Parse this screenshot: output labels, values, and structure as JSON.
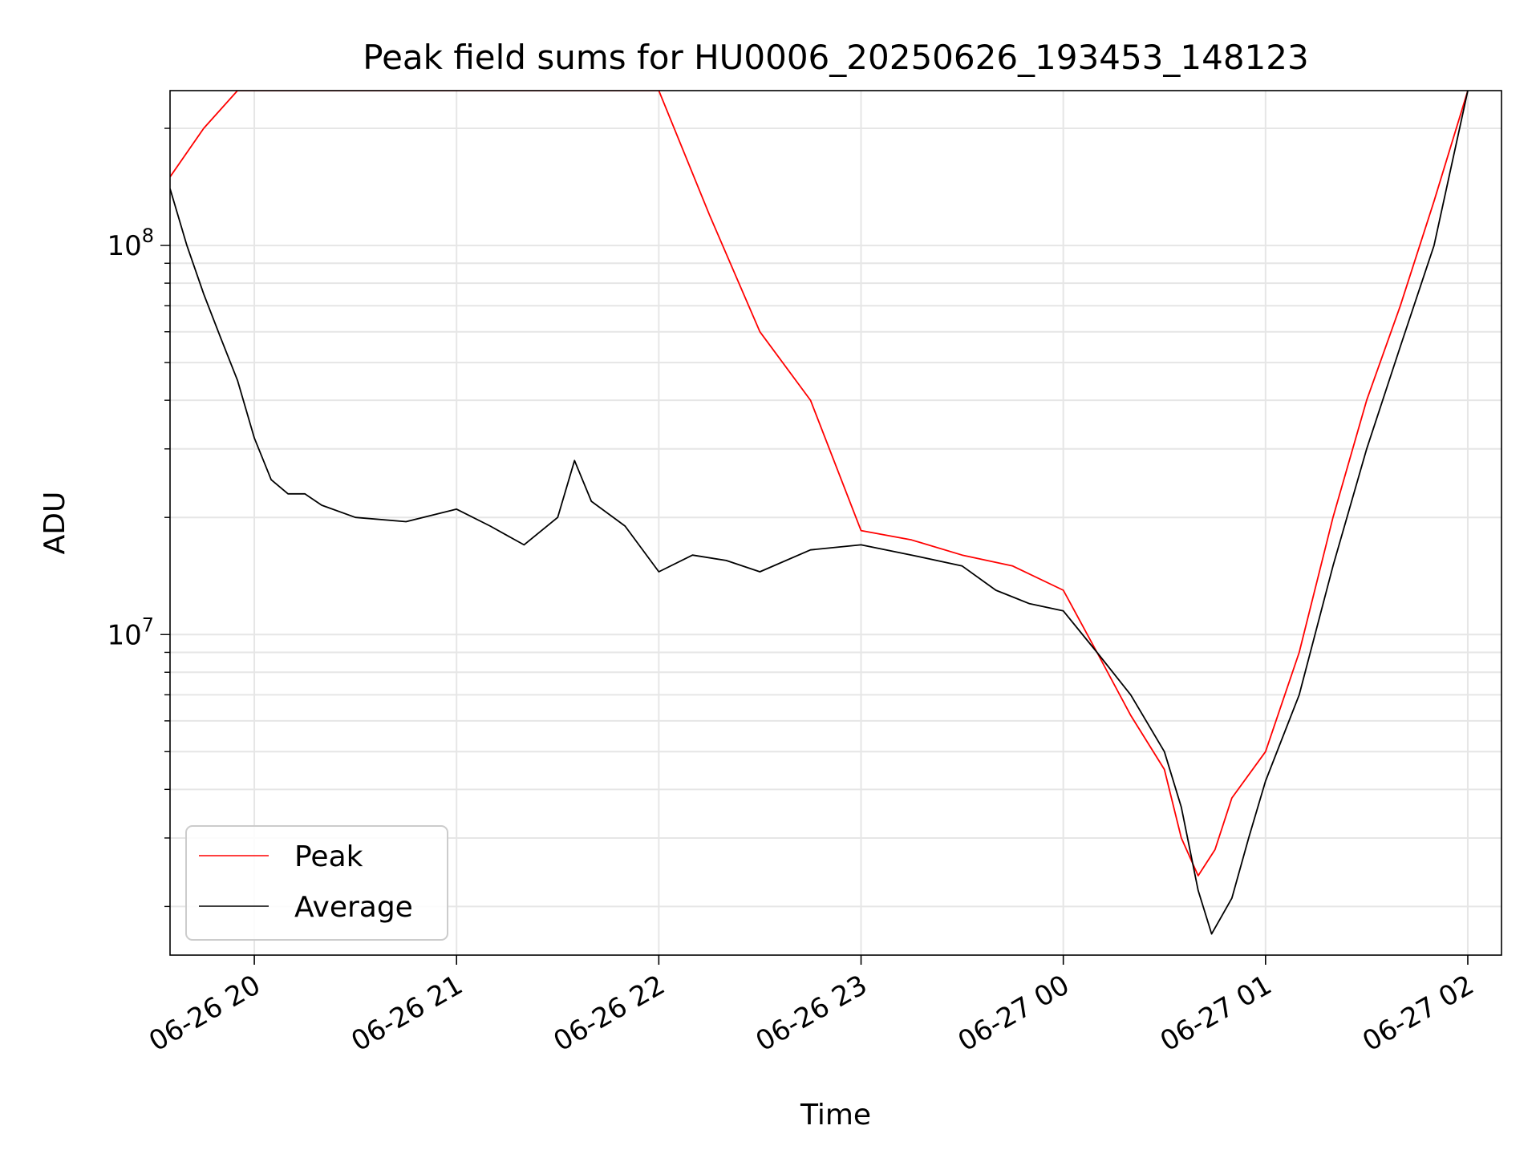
{
  "chart_data": {
    "type": "line",
    "title": "Peak field sums for HU0006_20250626_193453_148123",
    "xlabel": "Time",
    "ylabel": "ADU",
    "y_scale": "log",
    "xlim": [
      "2025-06-26 19:35",
      "2025-06-27 02:10"
    ],
    "ylim": [
      1500000,
      250000000
    ],
    "x_ticks": [
      {
        "t": "2025-06-26 20:00",
        "label": "06-26 20"
      },
      {
        "t": "2025-06-26 21:00",
        "label": "06-26 21"
      },
      {
        "t": "2025-06-26 22:00",
        "label": "06-26 22"
      },
      {
        "t": "2025-06-26 23:00",
        "label": "06-26 23"
      },
      {
        "t": "2025-06-27 00:00",
        "label": "06-27 00"
      },
      {
        "t": "2025-06-27 01:00",
        "label": "06-27 01"
      },
      {
        "t": "2025-06-27 02:00",
        "label": "06-27 02"
      }
    ],
    "y_ticks": [
      {
        "value": 10000000,
        "base": "10",
        "exp": "7"
      },
      {
        "value": 100000000,
        "base": "10",
        "exp": "8"
      }
    ],
    "grid": true,
    "legend_position": "lower-left",
    "series": [
      {
        "name": "Peak",
        "color": "#ff0000",
        "x": [
          "2025-06-26 19:35",
          "2025-06-26 19:45",
          "2025-06-26 19:55",
          "2025-06-26 20:05",
          "2025-06-26 20:15",
          "2025-06-26 20:30",
          "2025-06-26 20:45",
          "2025-06-26 21:00",
          "2025-06-26 21:15",
          "2025-06-26 21:30",
          "2025-06-26 21:45",
          "2025-06-26 22:00",
          "2025-06-26 22:15",
          "2025-06-26 22:30",
          "2025-06-26 22:45",
          "2025-06-26 23:00",
          "2025-06-26 23:15",
          "2025-06-26 23:30",
          "2025-06-26 23:45",
          "2025-06-27 00:00",
          "2025-06-27 00:10",
          "2025-06-27 00:20",
          "2025-06-27 00:30",
          "2025-06-27 00:35",
          "2025-06-27 00:40",
          "2025-06-27 00:45",
          "2025-06-27 00:50",
          "2025-06-27 01:00",
          "2025-06-27 01:10",
          "2025-06-27 01:20",
          "2025-06-27 01:30",
          "2025-06-27 01:40",
          "2025-06-27 01:50",
          "2025-06-27 02:00"
        ],
        "y": [
          150000000,
          200000000,
          250000000,
          250000000,
          250000000,
          250000000,
          250000000,
          250000000,
          250000000,
          250000000,
          250000000,
          250000000,
          120000000,
          60000000,
          40000000,
          18500000,
          17500000,
          16000000,
          15000000,
          13000000,
          9000000,
          6200000,
          4500000,
          3000000,
          2400000,
          2800000,
          3800000,
          5000000,
          9000000,
          20000000,
          40000000,
          70000000,
          130000000,
          250000000
        ]
      },
      {
        "name": "Average",
        "color": "#000000",
        "x": [
          "2025-06-26 19:35",
          "2025-06-26 19:40",
          "2025-06-26 19:45",
          "2025-06-26 19:50",
          "2025-06-26 19:55",
          "2025-06-26 20:00",
          "2025-06-26 20:05",
          "2025-06-26 20:10",
          "2025-06-26 20:15",
          "2025-06-26 20:20",
          "2025-06-26 20:30",
          "2025-06-26 20:45",
          "2025-06-26 21:00",
          "2025-06-26 21:10",
          "2025-06-26 21:20",
          "2025-06-26 21:30",
          "2025-06-26 21:35",
          "2025-06-26 21:40",
          "2025-06-26 21:50",
          "2025-06-26 22:00",
          "2025-06-26 22:10",
          "2025-06-26 22:20",
          "2025-06-26 22:30",
          "2025-06-26 22:45",
          "2025-06-26 23:00",
          "2025-06-26 23:15",
          "2025-06-26 23:30",
          "2025-06-26 23:40",
          "2025-06-26 23:50",
          "2025-06-27 00:00",
          "2025-06-27 00:10",
          "2025-06-27 00:20",
          "2025-06-27 00:30",
          "2025-06-27 00:35",
          "2025-06-27 00:40",
          "2025-06-27 00:44",
          "2025-06-27 00:50",
          "2025-06-27 00:55",
          "2025-06-27 01:00",
          "2025-06-27 01:10",
          "2025-06-27 01:20",
          "2025-06-27 01:30",
          "2025-06-27 01:40",
          "2025-06-27 01:50",
          "2025-06-27 02:00"
        ],
        "y": [
          140000000,
          100000000,
          75000000,
          58000000,
          45000000,
          32000000,
          25000000,
          23000000,
          23000000,
          21500000,
          20000000,
          19500000,
          21000000,
          19000000,
          17000000,
          20000000,
          28000000,
          22000000,
          19000000,
          14500000,
          16000000,
          15500000,
          14500000,
          16500000,
          17000000,
          16000000,
          15000000,
          13000000,
          12000000,
          11500000,
          9000000,
          7000000,
          5000000,
          3600000,
          2200000,
          1700000,
          2100000,
          3000000,
          4200000,
          7000000,
          15000000,
          30000000,
          55000000,
          100000000,
          250000000
        ]
      }
    ]
  }
}
